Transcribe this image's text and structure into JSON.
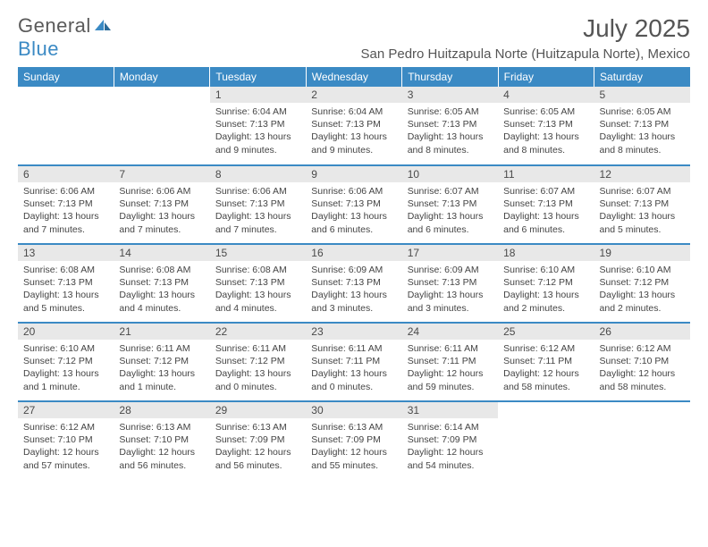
{
  "logo": {
    "general": "General",
    "blue": "Blue"
  },
  "title": {
    "month": "July 2025",
    "location": "San Pedro Huitzapula Norte (Huitzapula Norte), Mexico"
  },
  "colors": {
    "header_bg": "#3b8ac4",
    "daynum_bg": "#e8e8e8",
    "row_border": "#3b8ac4"
  },
  "weekdays": [
    "Sunday",
    "Monday",
    "Tuesday",
    "Wednesday",
    "Thursday",
    "Friday",
    "Saturday"
  ],
  "weeks": [
    [
      null,
      null,
      {
        "n": "1",
        "sr": "Sunrise: 6:04 AM",
        "ss": "Sunset: 7:13 PM",
        "dl": "Daylight: 13 hours and 9 minutes."
      },
      {
        "n": "2",
        "sr": "Sunrise: 6:04 AM",
        "ss": "Sunset: 7:13 PM",
        "dl": "Daylight: 13 hours and 9 minutes."
      },
      {
        "n": "3",
        "sr": "Sunrise: 6:05 AM",
        "ss": "Sunset: 7:13 PM",
        "dl": "Daylight: 13 hours and 8 minutes."
      },
      {
        "n": "4",
        "sr": "Sunrise: 6:05 AM",
        "ss": "Sunset: 7:13 PM",
        "dl": "Daylight: 13 hours and 8 minutes."
      },
      {
        "n": "5",
        "sr": "Sunrise: 6:05 AM",
        "ss": "Sunset: 7:13 PM",
        "dl": "Daylight: 13 hours and 8 minutes."
      }
    ],
    [
      {
        "n": "6",
        "sr": "Sunrise: 6:06 AM",
        "ss": "Sunset: 7:13 PM",
        "dl": "Daylight: 13 hours and 7 minutes."
      },
      {
        "n": "7",
        "sr": "Sunrise: 6:06 AM",
        "ss": "Sunset: 7:13 PM",
        "dl": "Daylight: 13 hours and 7 minutes."
      },
      {
        "n": "8",
        "sr": "Sunrise: 6:06 AM",
        "ss": "Sunset: 7:13 PM",
        "dl": "Daylight: 13 hours and 7 minutes."
      },
      {
        "n": "9",
        "sr": "Sunrise: 6:06 AM",
        "ss": "Sunset: 7:13 PM",
        "dl": "Daylight: 13 hours and 6 minutes."
      },
      {
        "n": "10",
        "sr": "Sunrise: 6:07 AM",
        "ss": "Sunset: 7:13 PM",
        "dl": "Daylight: 13 hours and 6 minutes."
      },
      {
        "n": "11",
        "sr": "Sunrise: 6:07 AM",
        "ss": "Sunset: 7:13 PM",
        "dl": "Daylight: 13 hours and 6 minutes."
      },
      {
        "n": "12",
        "sr": "Sunrise: 6:07 AM",
        "ss": "Sunset: 7:13 PM",
        "dl": "Daylight: 13 hours and 5 minutes."
      }
    ],
    [
      {
        "n": "13",
        "sr": "Sunrise: 6:08 AM",
        "ss": "Sunset: 7:13 PM",
        "dl": "Daylight: 13 hours and 5 minutes."
      },
      {
        "n": "14",
        "sr": "Sunrise: 6:08 AM",
        "ss": "Sunset: 7:13 PM",
        "dl": "Daylight: 13 hours and 4 minutes."
      },
      {
        "n": "15",
        "sr": "Sunrise: 6:08 AM",
        "ss": "Sunset: 7:13 PM",
        "dl": "Daylight: 13 hours and 4 minutes."
      },
      {
        "n": "16",
        "sr": "Sunrise: 6:09 AM",
        "ss": "Sunset: 7:13 PM",
        "dl": "Daylight: 13 hours and 3 minutes."
      },
      {
        "n": "17",
        "sr": "Sunrise: 6:09 AM",
        "ss": "Sunset: 7:13 PM",
        "dl": "Daylight: 13 hours and 3 minutes."
      },
      {
        "n": "18",
        "sr": "Sunrise: 6:10 AM",
        "ss": "Sunset: 7:12 PM",
        "dl": "Daylight: 13 hours and 2 minutes."
      },
      {
        "n": "19",
        "sr": "Sunrise: 6:10 AM",
        "ss": "Sunset: 7:12 PM",
        "dl": "Daylight: 13 hours and 2 minutes."
      }
    ],
    [
      {
        "n": "20",
        "sr": "Sunrise: 6:10 AM",
        "ss": "Sunset: 7:12 PM",
        "dl": "Daylight: 13 hours and 1 minute."
      },
      {
        "n": "21",
        "sr": "Sunrise: 6:11 AM",
        "ss": "Sunset: 7:12 PM",
        "dl": "Daylight: 13 hours and 1 minute."
      },
      {
        "n": "22",
        "sr": "Sunrise: 6:11 AM",
        "ss": "Sunset: 7:12 PM",
        "dl": "Daylight: 13 hours and 0 minutes."
      },
      {
        "n": "23",
        "sr": "Sunrise: 6:11 AM",
        "ss": "Sunset: 7:11 PM",
        "dl": "Daylight: 13 hours and 0 minutes."
      },
      {
        "n": "24",
        "sr": "Sunrise: 6:11 AM",
        "ss": "Sunset: 7:11 PM",
        "dl": "Daylight: 12 hours and 59 minutes."
      },
      {
        "n": "25",
        "sr": "Sunrise: 6:12 AM",
        "ss": "Sunset: 7:11 PM",
        "dl": "Daylight: 12 hours and 58 minutes."
      },
      {
        "n": "26",
        "sr": "Sunrise: 6:12 AM",
        "ss": "Sunset: 7:10 PM",
        "dl": "Daylight: 12 hours and 58 minutes."
      }
    ],
    [
      {
        "n": "27",
        "sr": "Sunrise: 6:12 AM",
        "ss": "Sunset: 7:10 PM",
        "dl": "Daylight: 12 hours and 57 minutes."
      },
      {
        "n": "28",
        "sr": "Sunrise: 6:13 AM",
        "ss": "Sunset: 7:10 PM",
        "dl": "Daylight: 12 hours and 56 minutes."
      },
      {
        "n": "29",
        "sr": "Sunrise: 6:13 AM",
        "ss": "Sunset: 7:09 PM",
        "dl": "Daylight: 12 hours and 56 minutes."
      },
      {
        "n": "30",
        "sr": "Sunrise: 6:13 AM",
        "ss": "Sunset: 7:09 PM",
        "dl": "Daylight: 12 hours and 55 minutes."
      },
      {
        "n": "31",
        "sr": "Sunrise: 6:14 AM",
        "ss": "Sunset: 7:09 PM",
        "dl": "Daylight: 12 hours and 54 minutes."
      },
      null,
      null
    ]
  ]
}
